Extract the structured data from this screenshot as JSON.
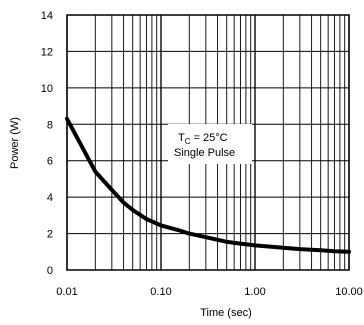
{
  "chart_data": {
    "type": "line",
    "xlabel": "Time (sec)",
    "ylabel": "Power (W)",
    "x_scale": "log",
    "xlim": [
      0.01,
      10
    ],
    "ylim": [
      0,
      14
    ],
    "grid": true,
    "x_ticks": [
      "0.01",
      "0.10",
      "1.00",
      "10.00"
    ],
    "y_ticks": [
      "0",
      "2",
      "4",
      "6",
      "8",
      "10",
      "12",
      "14"
    ],
    "annotation": {
      "line1_main": "T",
      "line1_sub": "C",
      "line1_rest": " = 25°C",
      "line2": "Single Pulse"
    },
    "series": [
      {
        "x": [
          0.01,
          0.02,
          0.03,
          0.04,
          0.05,
          0.07,
          0.1,
          0.15,
          0.2,
          0.3,
          0.5,
          0.7,
          1,
          2,
          3,
          5,
          7,
          10
        ],
        "y": [
          8.3,
          5.4,
          4.4,
          3.7,
          3.3,
          2.8,
          2.45,
          2.2,
          2.0,
          1.8,
          1.55,
          1.45,
          1.35,
          1.22,
          1.15,
          1.08,
          1.03,
          1.0
        ]
      }
    ]
  }
}
